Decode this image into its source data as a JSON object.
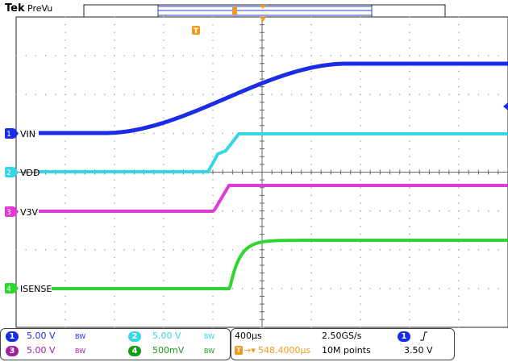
{
  "header": {
    "brand": "Tek",
    "mode": "PreVu"
  },
  "trigger": {
    "marker_letter": "T"
  },
  "colors": {
    "ch1": "#1a2de6",
    "ch2": "#36d6e6",
    "ch3": "#e03ad6",
    "ch4": "#2fd62f",
    "trigger": "#f39a1e",
    "grid": "#9a9a9a",
    "frame": "#222222"
  },
  "channels": [
    {
      "id": "1",
      "label": "VIN",
      "scale": "5.00 V",
      "bw": "BW"
    },
    {
      "id": "2",
      "label": "VDD",
      "scale": "5.00 V",
      "bw": "BW"
    },
    {
      "id": "3",
      "label": "V3V",
      "scale": "5.00 V",
      "bw": "BW"
    },
    {
      "id": "4",
      "label": "ISENSE",
      "scale": "500mV",
      "bw": "BW"
    }
  ],
  "timebase": {
    "per_div": "400µs",
    "sample_rate": "2.50GS/s",
    "trigger_pos": "548.4000µs",
    "record_length": "10M points"
  },
  "trigger_info": {
    "source": "1",
    "slope_icon": "rising-edge",
    "level": "3.50 V"
  }
}
